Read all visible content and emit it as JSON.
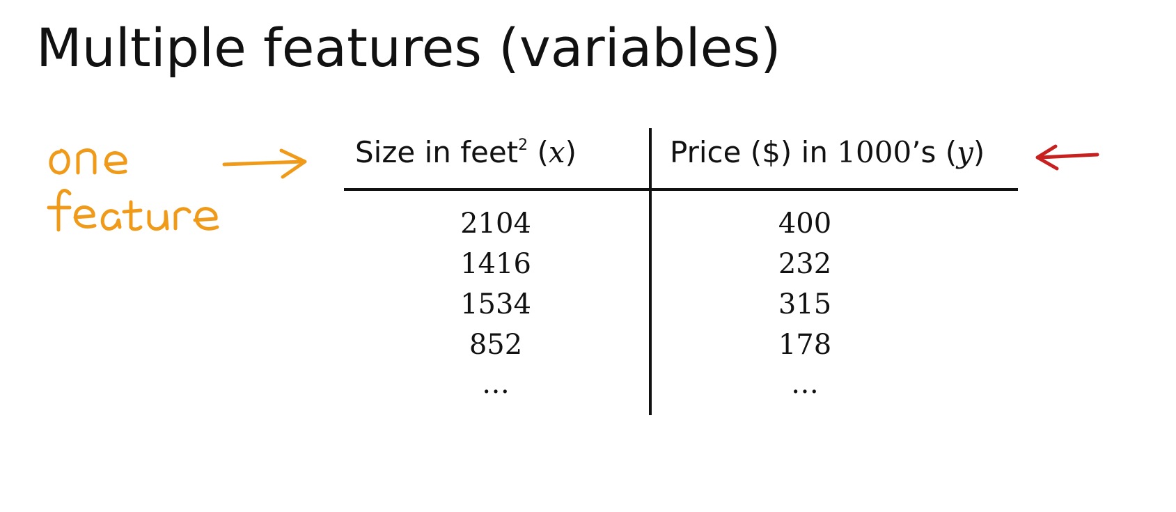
{
  "slide": {
    "title": "Multiple features (variables)"
  },
  "table": {
    "header_x_prefix": "Size in feet",
    "header_x_sup": "2",
    "header_x_var": "x",
    "header_y_prefix": "Price ($) in ",
    "header_y_num": "1000",
    "header_y_suffix": "’s",
    "header_y_var": "y",
    "rows": [
      {
        "x": "2104",
        "y": "400"
      },
      {
        "x": "1416",
        "y": "232"
      },
      {
        "x": "1534",
        "y": "315"
      },
      {
        "x": "852",
        "y": "178"
      },
      {
        "x": "…",
        "y": "…"
      }
    ]
  },
  "annotations": {
    "handwritten_note": "one feature",
    "note_color": "#f09a1a",
    "arrow_color": "#c8201e"
  }
}
